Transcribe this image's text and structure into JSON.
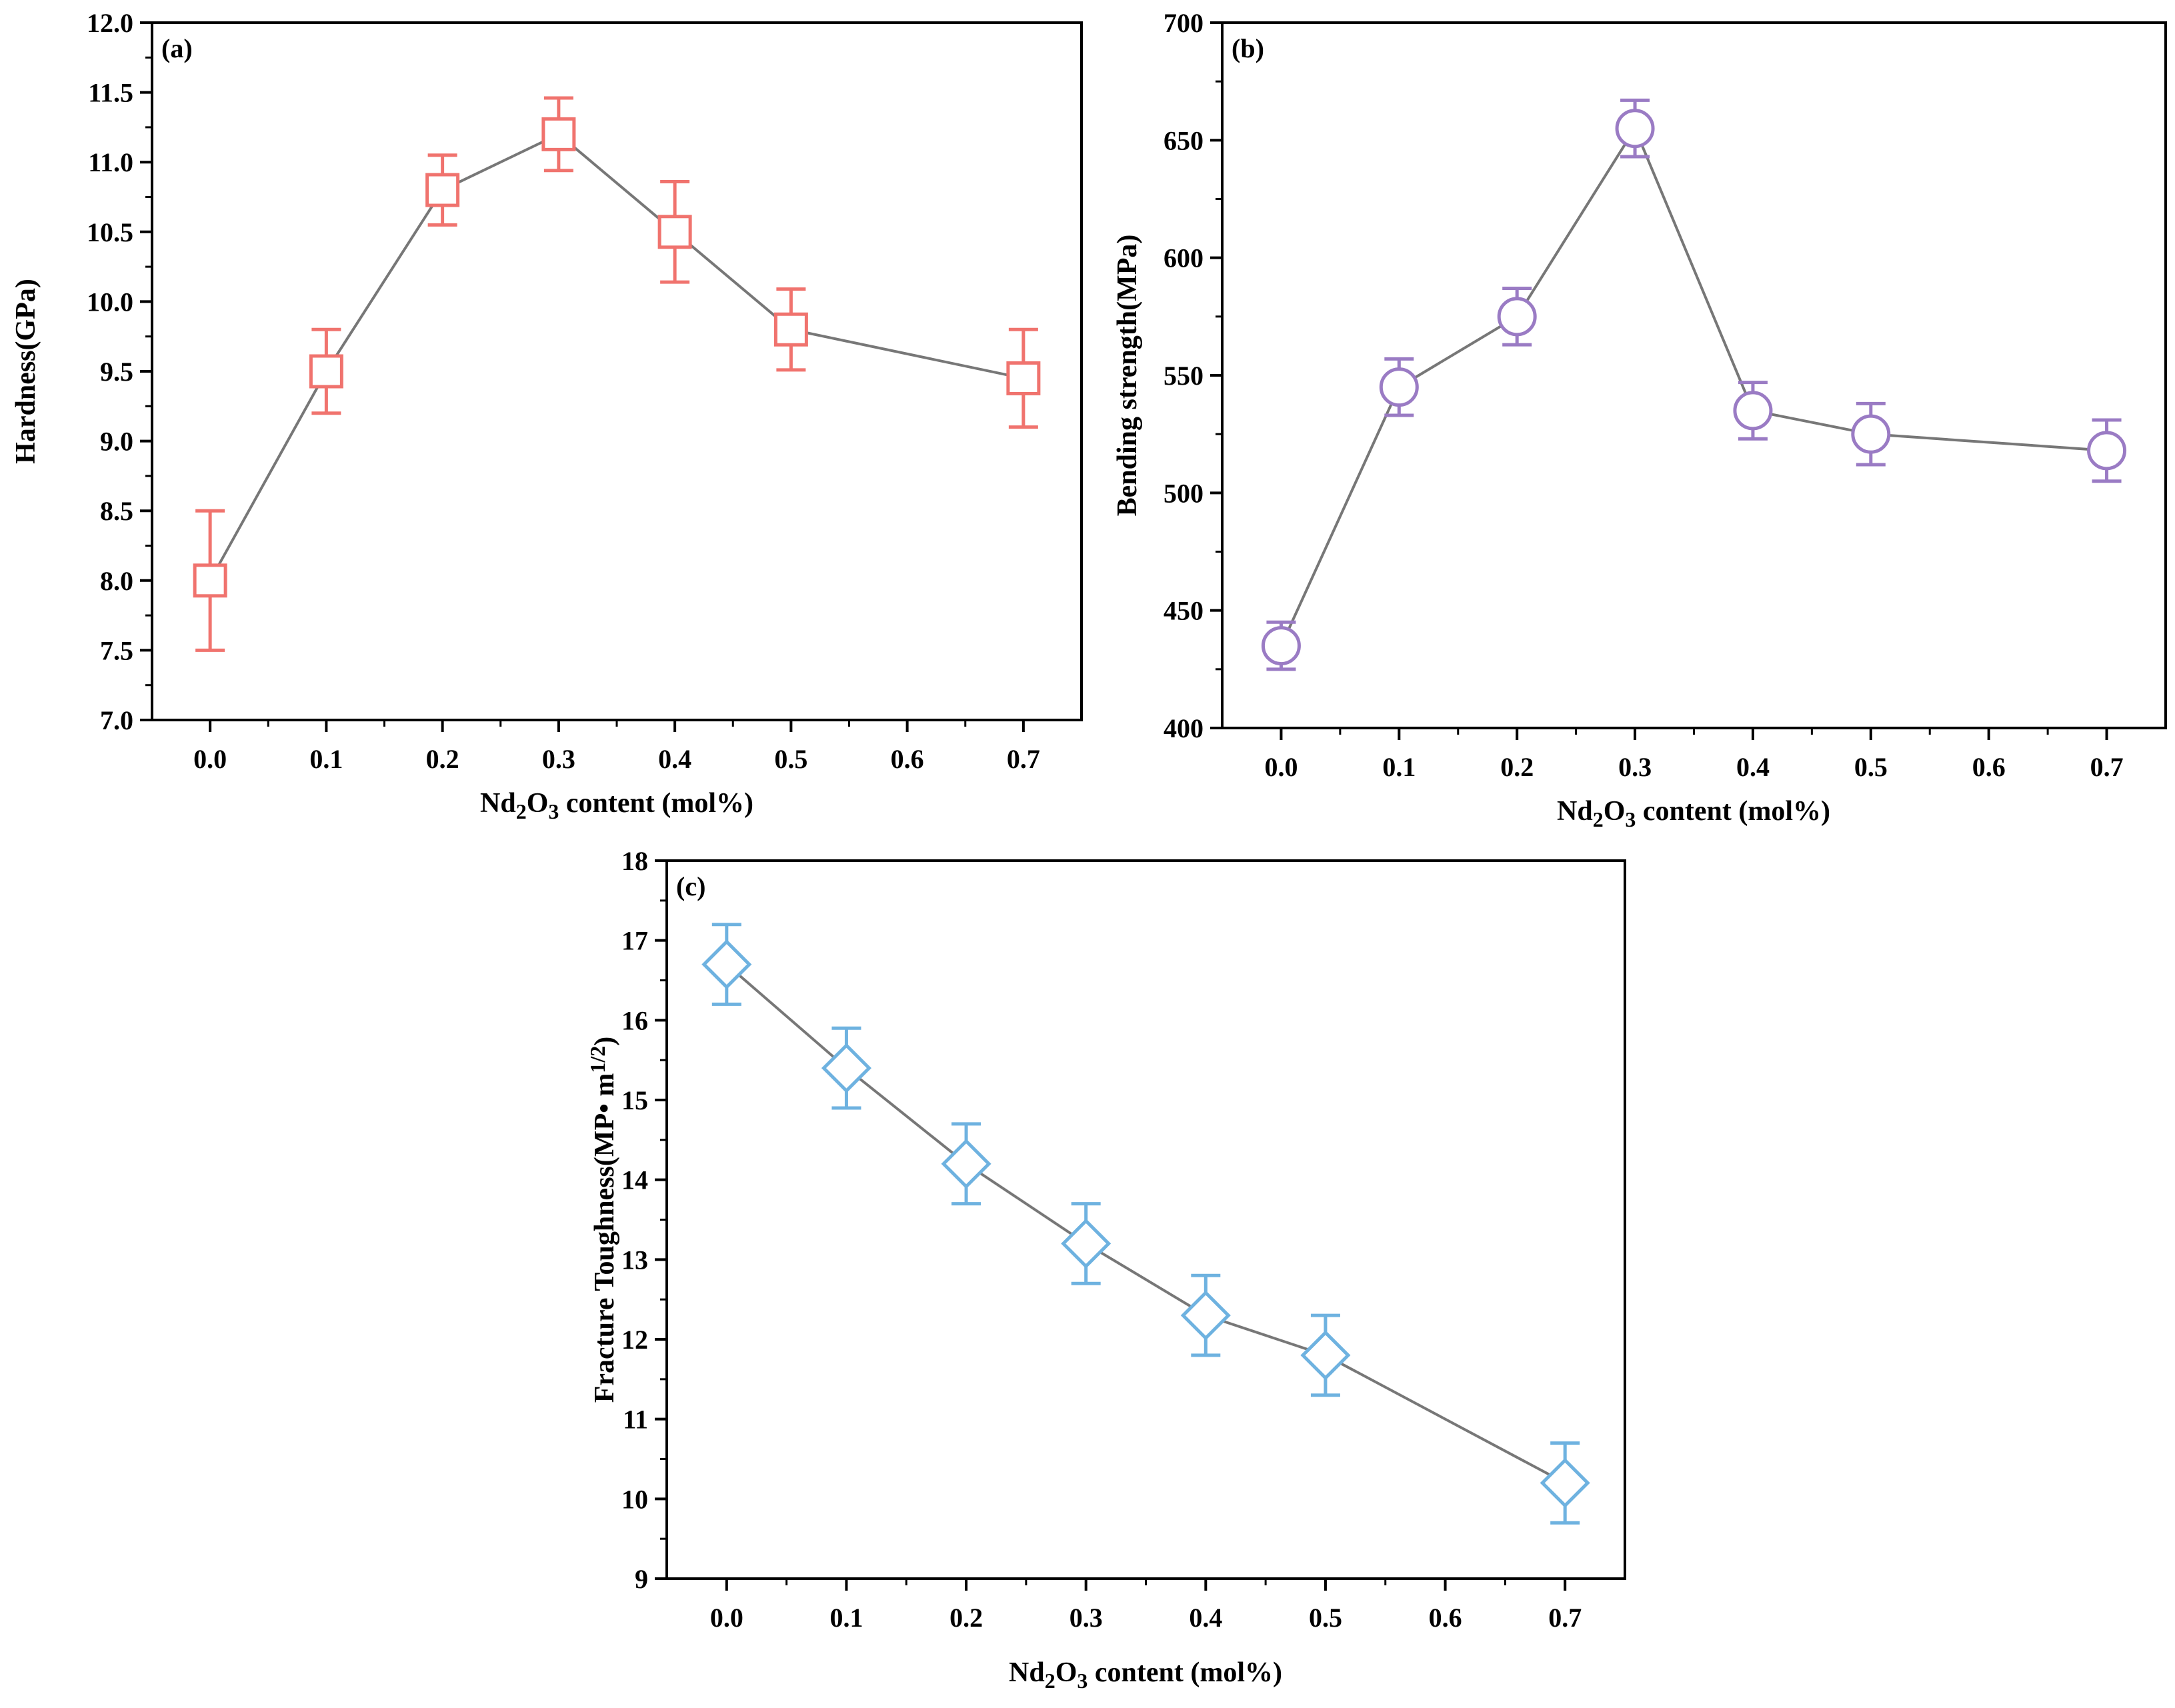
{
  "chart_data": [
    {
      "type": "line",
      "panel_label": "(a)",
      "ylabel": "Hardness(GPa)",
      "xlabel_parts": [
        "Nd",
        "2",
        "O",
        "3",
        " content (mol%)"
      ],
      "x": [
        0.0,
        0.1,
        0.2,
        0.3,
        0.4,
        0.5,
        0.7
      ],
      "y": [
        8.0,
        9.5,
        10.8,
        11.2,
        10.5,
        9.8,
        9.45
      ],
      "err": [
        0.5,
        0.3,
        0.25,
        0.26,
        0.36,
        0.29,
        0.35
      ],
      "xlim": [
        -0.05,
        0.75
      ],
      "ylim": [
        7.0,
        12.0
      ],
      "xticks": [
        0.0,
        0.1,
        0.2,
        0.3,
        0.4,
        0.5,
        0.6,
        0.7
      ],
      "xtick_labels": [
        "0.0",
        "0.1",
        "0.2",
        "0.3",
        "0.4",
        "0.5",
        "0.6",
        "0.7"
      ],
      "yticks": [
        7.0,
        7.5,
        8.0,
        8.5,
        9.0,
        9.5,
        10.0,
        10.5,
        11.0,
        11.5,
        12.0
      ],
      "ytick_labels": [
        "7.0",
        "7.5",
        "8.0",
        "8.5",
        "9.0",
        "9.5",
        "10.0",
        "10.5",
        "11.0",
        "11.5",
        "12.0"
      ],
      "marker": "square",
      "color": "#f0736e",
      "line_color": "#777777"
    },
    {
      "type": "line",
      "panel_label": "(b)",
      "ylabel": "Bending strength(MPa)",
      "xlabel_parts": [
        "Nd",
        "2",
        "O",
        "3",
        " content (mol%)"
      ],
      "x": [
        0.0,
        0.1,
        0.2,
        0.3,
        0.4,
        0.5,
        0.7
      ],
      "y": [
        435,
        545,
        575,
        655,
        535,
        525,
        518
      ],
      "err": [
        10,
        12,
        12,
        12,
        12,
        13,
        13
      ],
      "xlim": [
        -0.05,
        0.75
      ],
      "ylim": [
        400,
        700
      ],
      "xticks": [
        0.0,
        0.1,
        0.2,
        0.3,
        0.4,
        0.5,
        0.6,
        0.7
      ],
      "xtick_labels": [
        "0.0",
        "0.1",
        "0.2",
        "0.3",
        "0.4",
        "0.5",
        "0.6",
        "0.7"
      ],
      "yticks": [
        400,
        450,
        500,
        550,
        600,
        650,
        700
      ],
      "ytick_labels": [
        "400",
        "450",
        "500",
        "550",
        "600",
        "650",
        "700"
      ],
      "marker": "circle",
      "color": "#9a7bc4",
      "line_color": "#777777"
    },
    {
      "type": "line",
      "panel_label": "(c)",
      "ylabel_main": "Fracture Toughness(MP• m",
      "ylabel_sup": "1/2",
      "ylabel_end": ")",
      "xlabel_parts": [
        "Nd",
        "2",
        "O",
        "3",
        " content (mol%)"
      ],
      "x": [
        0.0,
        0.1,
        0.2,
        0.3,
        0.4,
        0.5,
        0.7
      ],
      "y": [
        16.7,
        15.4,
        14.2,
        13.2,
        12.3,
        11.8,
        10.2
      ],
      "err": [
        0.5,
        0.5,
        0.5,
        0.5,
        0.5,
        0.5,
        0.5
      ],
      "xlim": [
        -0.05,
        0.75
      ],
      "ylim": [
        9,
        18
      ],
      "xticks": [
        0.0,
        0.1,
        0.2,
        0.3,
        0.4,
        0.5,
        0.6,
        0.7
      ],
      "xtick_labels": [
        "0.0",
        "0.1",
        "0.2",
        "0.3",
        "0.4",
        "0.5",
        "0.6",
        "0.7"
      ],
      "yticks": [
        9,
        10,
        11,
        12,
        13,
        14,
        15,
        16,
        17,
        18
      ],
      "ytick_labels": [
        "9",
        "10",
        "11",
        "12",
        "13",
        "14",
        "15",
        "16",
        "17",
        "18"
      ],
      "marker": "diamond",
      "color": "#6eb2e0",
      "line_color": "#777777"
    }
  ]
}
